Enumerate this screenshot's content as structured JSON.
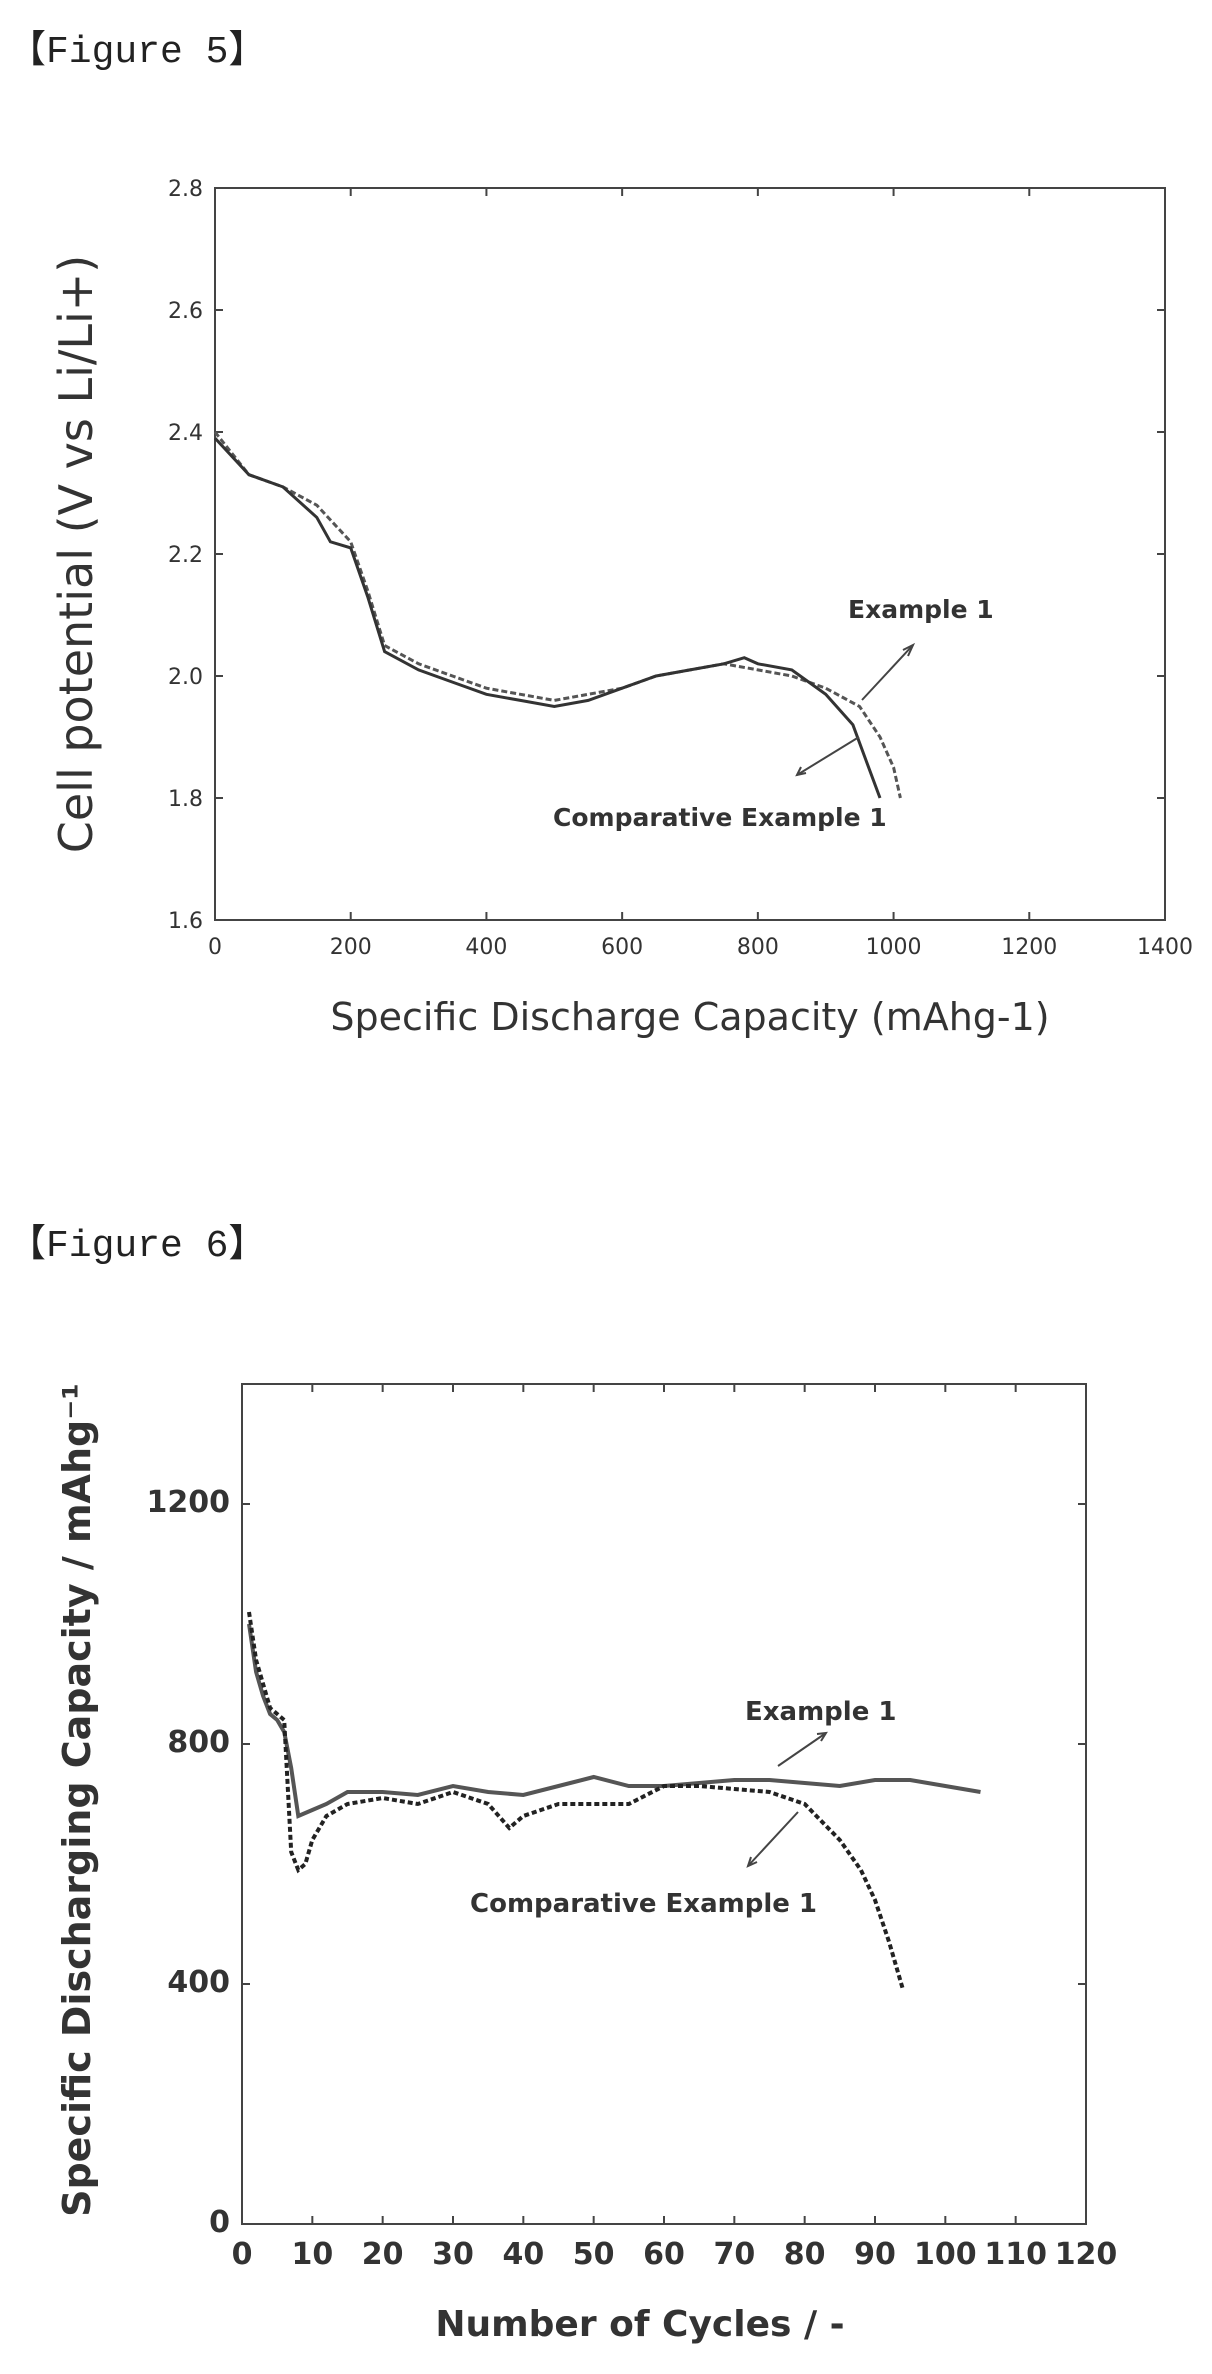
{
  "figures": [
    {
      "caption": "【Figure 5】"
    },
    {
      "caption": "【Figure 6】"
    }
  ],
  "chart_data": [
    {
      "type": "line",
      "xlabel": "Specific Discharge Capacity (mAhg-1)",
      "ylabel": "Cell potential (V vs Li/Li+)",
      "xlim": [
        0,
        1400
      ],
      "ylim": [
        1.6,
        2.8
      ],
      "xticks": [
        "0",
        "200",
        "400",
        "600",
        "800",
        "1000",
        "1200",
        "1400"
      ],
      "yticks": [
        "1.6",
        "1.8",
        "2.0",
        "2.2",
        "2.4",
        "2.6",
        "2.8"
      ],
      "annotations": [
        "Example 1",
        "Comparative Example 1"
      ],
      "series": [
        {
          "name": "Example 1",
          "x": [
            0,
            50,
            100,
            150,
            200,
            225,
            250,
            300,
            350,
            400,
            450,
            500,
            550,
            600,
            650,
            700,
            750,
            800,
            850,
            900,
            950,
            980,
            1000,
            1010
          ],
          "y": [
            2.4,
            2.33,
            2.31,
            2.28,
            2.22,
            2.14,
            2.05,
            2.02,
            2.0,
            1.98,
            1.97,
            1.96,
            1.97,
            1.98,
            2.0,
            2.01,
            2.02,
            2.01,
            2.0,
            1.98,
            1.95,
            1.9,
            1.85,
            1.8
          ]
        },
        {
          "name": "Comparative Example 1",
          "x": [
            0,
            50,
            100,
            150,
            170,
            200,
            225,
            250,
            300,
            350,
            400,
            450,
            500,
            550,
            600,
            650,
            700,
            750,
            780,
            800,
            850,
            900,
            940,
            960,
            980
          ],
          "y": [
            2.39,
            2.33,
            2.31,
            2.26,
            2.22,
            2.21,
            2.13,
            2.04,
            2.01,
            1.99,
            1.97,
            1.96,
            1.95,
            1.96,
            1.98,
            2.0,
            2.01,
            2.02,
            2.03,
            2.02,
            2.01,
            1.97,
            1.92,
            1.86,
            1.8
          ]
        }
      ]
    },
    {
      "type": "line",
      "xlabel": "Number of Cycles / -",
      "ylabel": "Specific Discharging Capacity / mAhg⁻¹",
      "xlim": [
        0,
        120
      ],
      "ylim": [
        0,
        1400
      ],
      "xticks": [
        "0",
        "10",
        "20",
        "30",
        "40",
        "50",
        "60",
        "70",
        "80",
        "90",
        "100",
        "110",
        "120"
      ],
      "yticks": [
        "0",
        "400",
        "800",
        "1200"
      ],
      "annotations": [
        "Example 1",
        "Comparative Example 1"
      ],
      "series": [
        {
          "name": "Example 1",
          "x": [
            1,
            2,
            3,
            4,
            5,
            6,
            7,
            8,
            10,
            12,
            15,
            20,
            25,
            30,
            35,
            40,
            45,
            50,
            55,
            60,
            65,
            70,
            75,
            80,
            85,
            90,
            95,
            100,
            105
          ],
          "y": [
            1000,
            920,
            880,
            850,
            840,
            820,
            760,
            680,
            690,
            700,
            720,
            720,
            715,
            730,
            720,
            715,
            730,
            745,
            730,
            730,
            735,
            740,
            740,
            735,
            730,
            740,
            740,
            730,
            720
          ]
        },
        {
          "name": "Comparative Example 1",
          "x": [
            1,
            2,
            3,
            4,
            5,
            6,
            7,
            8,
            9,
            10,
            12,
            15,
            20,
            25,
            30,
            35,
            38,
            40,
            45,
            50,
            55,
            60,
            65,
            70,
            75,
            80,
            85,
            88,
            90,
            92,
            94
          ],
          "y": [
            1020,
            940,
            900,
            860,
            850,
            840,
            620,
            590,
            600,
            640,
            680,
            700,
            710,
            700,
            720,
            700,
            660,
            680,
            700,
            700,
            700,
            730,
            730,
            725,
            720,
            700,
            640,
            590,
            540,
            470,
            390
          ]
        }
      ]
    }
  ]
}
